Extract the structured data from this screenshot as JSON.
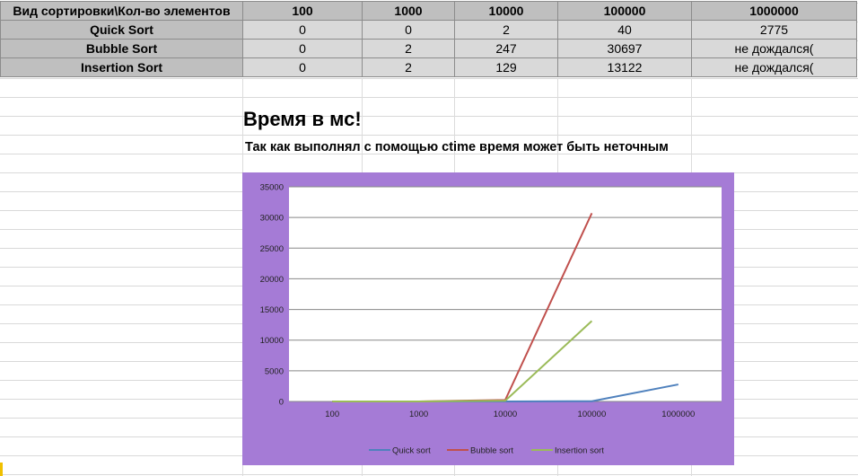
{
  "table": {
    "header": [
      "Вид сортировки\\Кол-во элементов",
      "100",
      "1000",
      "10000",
      "100000",
      "1000000"
    ],
    "rows": [
      {
        "name": "Quick Sort",
        "values": [
          "0",
          "0",
          "2",
          "40",
          "2775"
        ]
      },
      {
        "name": "Bubble Sort",
        "values": [
          "0",
          "2",
          "247",
          "30697",
          "не дождался("
        ]
      },
      {
        "name": "Insertion Sort",
        "values": [
          "0",
          "2",
          "129",
          "13122",
          "не дождался("
        ]
      }
    ]
  },
  "note": {
    "title": "Время в мс!",
    "subtitle": "Так как выполнял с помощью ctime время может быть неточным"
  },
  "chart_data": {
    "type": "line",
    "categories": [
      "100",
      "1000",
      "10000",
      "100000",
      "1000000"
    ],
    "series": [
      {
        "name": "Quick sort",
        "color": "#4f81bd",
        "values": [
          0,
          0,
          2,
          40,
          2775
        ]
      },
      {
        "name": "Bubble sort",
        "color": "#c0504d",
        "values": [
          0,
          2,
          247,
          30697,
          null
        ]
      },
      {
        "name": "Insertion sort",
        "color": "#9bbb59",
        "values": [
          0,
          2,
          129,
          13122,
          null
        ]
      }
    ],
    "ylim": [
      0,
      35000
    ],
    "yticks": [
      "0",
      "5000",
      "10000",
      "15000",
      "20000",
      "25000",
      "30000",
      "35000"
    ],
    "grid": true,
    "legend": "bottom",
    "background": "#a57bd6"
  }
}
